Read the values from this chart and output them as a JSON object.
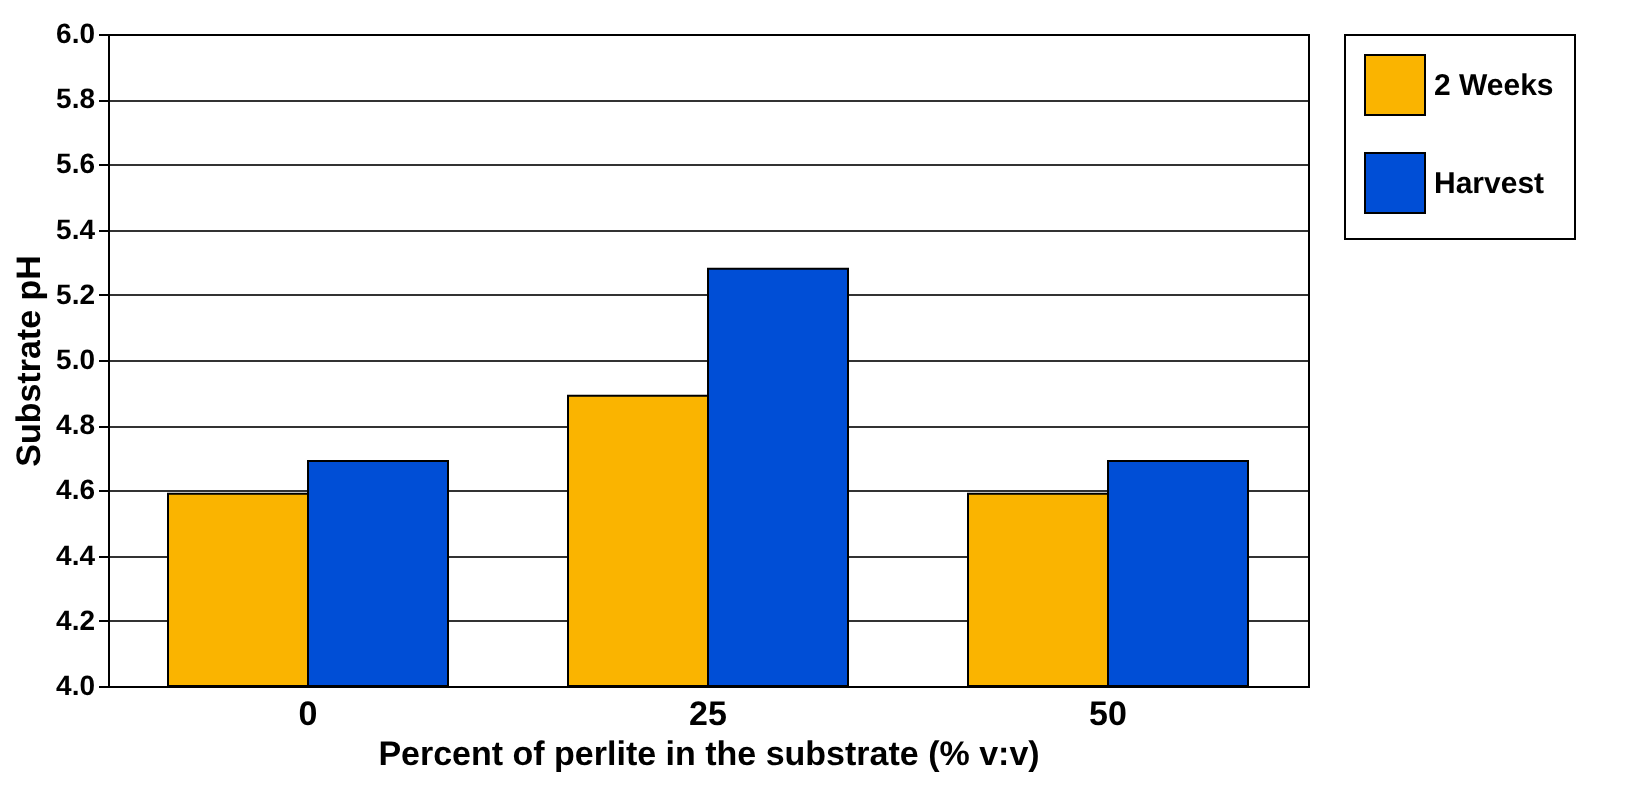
{
  "chart_data": {
    "type": "bar",
    "xlabel": "Percent of perlite in the substrate (% v:v)",
    "ylabel": "Substrate pH",
    "categories": [
      "0",
      "25",
      "50"
    ],
    "series": [
      {
        "name": "2 Weeks",
        "color": "#fab400",
        "values": [
          4.59,
          4.89,
          4.59
        ]
      },
      {
        "name": "Harvest",
        "color": "#004ed6",
        "values": [
          4.69,
          5.28,
          4.69
        ]
      }
    ],
    "ylim": [
      4.0,
      6.0
    ],
    "yticks": [
      {
        "value": 4.0,
        "label": "4.0"
      },
      {
        "value": 4.2,
        "label": "4.2"
      },
      {
        "value": 4.4,
        "label": "4.4"
      },
      {
        "value": 4.6,
        "label": "4.6"
      },
      {
        "value": 4.8,
        "label": "4.8"
      },
      {
        "value": 5.0,
        "label": "5.0"
      },
      {
        "value": 5.2,
        "label": "5.2"
      },
      {
        "value": 5.4,
        "label": "5.4"
      },
      {
        "value": 5.6,
        "label": "5.6"
      },
      {
        "value": 5.8,
        "label": "5.8"
      },
      {
        "value": 6.0,
        "label": "6.0"
      }
    ],
    "grid": "y",
    "legend": "right"
  }
}
